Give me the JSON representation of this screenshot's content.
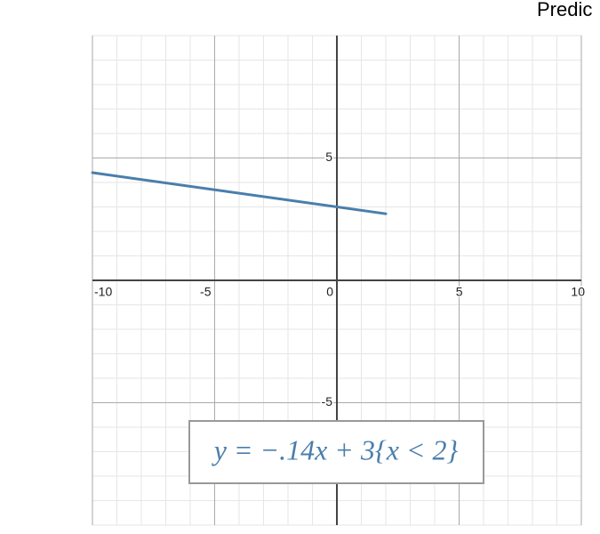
{
  "chart_data": {
    "type": "line",
    "title": "Predic",
    "x": [
      -10,
      2
    ],
    "values": [
      4.4,
      2.72
    ],
    "color": "#4a7eab",
    "xlim": [
      -10,
      10
    ],
    "ylim": [
      -10,
      10
    ],
    "xticks": [
      -10,
      -5,
      0,
      5,
      10
    ],
    "yticks": [
      -5,
      5
    ],
    "grid": true,
    "annotation": "y = −.14x + 3{x < 2}"
  }
}
